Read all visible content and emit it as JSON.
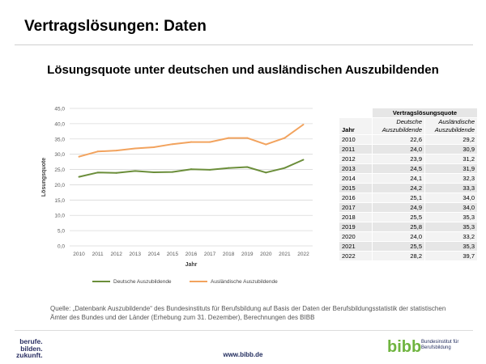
{
  "slide_title": "Vertragslösungen: Daten",
  "chart_data": {
    "type": "line",
    "title": "Lösungsquote unter deutschen und ausländischen Auszubildenden",
    "xlabel": "Jahr",
    "ylabel": "Lösungsquote",
    "x": [
      "2010",
      "2011",
      "2012",
      "2013",
      "2014",
      "2015",
      "2016",
      "2017",
      "2018",
      "2019",
      "2020",
      "2021",
      "2022"
    ],
    "ylim": [
      0,
      45
    ],
    "yticks": [
      "0,0",
      "5,0",
      "10,0",
      "15,0",
      "20,0",
      "25,0",
      "30,0",
      "35,0",
      "40,0",
      "45,0"
    ],
    "grid": true,
    "legend_position": "bottom",
    "series": [
      {
        "name": "Deutsche Auszubildende",
        "color": "#6b8e3a",
        "values": [
          22.6,
          24.0,
          23.9,
          24.5,
          24.1,
          24.2,
          25.1,
          24.9,
          25.5,
          25.8,
          24.0,
          25.5,
          28.2
        ]
      },
      {
        "name": "Ausländische Auszubildende",
        "color": "#f2a35e",
        "values": [
          29.2,
          30.9,
          31.2,
          31.9,
          32.3,
          33.3,
          34.0,
          34.0,
          35.3,
          35.3,
          33.2,
          35.3,
          39.7
        ]
      }
    ]
  },
  "table": {
    "group_header": "Vertragslösungsquote",
    "year_header": "Jahr",
    "col1_header": "Deutsche Auszubildende",
    "col2_header": "Ausländische Auszubildende",
    "rows": [
      [
        "2010",
        "22,6",
        "29,2"
      ],
      [
        "2011",
        "24,0",
        "30,9"
      ],
      [
        "2012",
        "23,9",
        "31,2"
      ],
      [
        "2013",
        "24,5",
        "31,9"
      ],
      [
        "2014",
        "24,1",
        "32,3"
      ],
      [
        "2015",
        "24,2",
        "33,3"
      ],
      [
        "2016",
        "25,1",
        "34,0"
      ],
      [
        "2017",
        "24,9",
        "34,0"
      ],
      [
        "2018",
        "25,5",
        "35,3"
      ],
      [
        "2019",
        "25,8",
        "35,3"
      ],
      [
        "2020",
        "24,0",
        "33,2"
      ],
      [
        "2021",
        "25,5",
        "35,3"
      ],
      [
        "2022",
        "28,2",
        "39,7"
      ]
    ]
  },
  "source": "Quelle: „Datenbank Auszubildende“ des Bundesinstituts für Berufsbildung auf Basis der Daten der Berufsbildungsstatistik der statistischen Ämter des Bundes und der Länder (Erhebung zum 31. Dezember), Berechnungen des BIBB",
  "footer": {
    "claim": [
      "berufe.",
      "bilden.",
      "zukunft."
    ],
    "url": "www.bibb.de",
    "logo_text": "bibb",
    "org_line1": "Bundesinstitut für",
    "org_line2": "Berufsbildung"
  },
  "colors": {
    "brand_navy": "#1f2a5c",
    "logo_green": "#6fb43f"
  }
}
